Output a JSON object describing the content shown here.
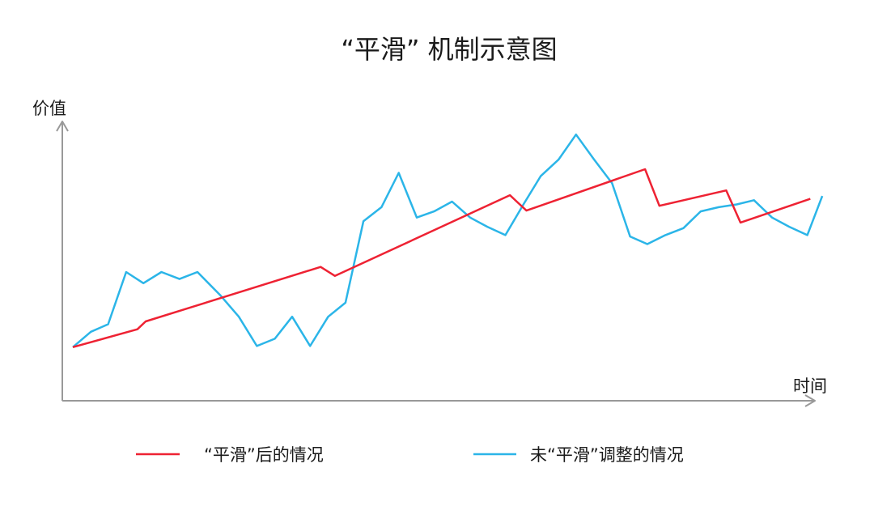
{
  "chart_data": {
    "type": "line",
    "title": "“平滑” 机制示意图",
    "xlabel": "时间",
    "ylabel": "价值",
    "xlim": [
      0,
      100
    ],
    "ylim": [
      0,
      100
    ],
    "grid": false,
    "legend_position": "bottom",
    "series": [
      {
        "name": "“平滑”后的情况",
        "color": "#ee2233",
        "points": [
          [
            1.4,
            19.2
          ],
          [
            10,
            25.6
          ],
          [
            11.1,
            28.4
          ],
          [
            34.4,
            47.9
          ],
          [
            36.3,
            44.7
          ],
          [
            59.6,
            73.6
          ],
          [
            61.8,
            68.1
          ],
          [
            77.6,
            82.9
          ],
          [
            79.5,
            69.8
          ],
          [
            88.4,
            75.3
          ],
          [
            90.3,
            63.8
          ],
          [
            99.6,
            72.3
          ]
        ]
      },
      {
        "name": "未“平滑”调整的情况",
        "color": "#2bb5e8",
        "points": [
          [
            1.4,
            19.2
          ],
          [
            3.8,
            24.7
          ],
          [
            6.1,
            27.4
          ],
          [
            8.5,
            46.1
          ],
          [
            10.8,
            42.1
          ],
          [
            13.2,
            46.1
          ],
          [
            15.6,
            43.6
          ],
          [
            18,
            46.1
          ],
          [
            21.1,
            37.6
          ],
          [
            23.5,
            30.1
          ],
          [
            25.9,
            19.6
          ],
          [
            28.3,
            22.2
          ],
          [
            30.6,
            30.1
          ],
          [
            33,
            19.6
          ],
          [
            35.4,
            30.1
          ],
          [
            37.7,
            35.1
          ],
          [
            40.1,
            64.3
          ],
          [
            42.5,
            69.3
          ],
          [
            44.8,
            81.6
          ],
          [
            47.2,
            65.6
          ],
          [
            49.5,
            67.8
          ],
          [
            51.9,
            71.3
          ],
          [
            54.3,
            65.6
          ],
          [
            56.6,
            62.3
          ],
          [
            59,
            59.3
          ],
          [
            61.4,
            70.3
          ],
          [
            63.7,
            80.4
          ],
          [
            66.1,
            86.4
          ],
          [
            68.4,
            95.3
          ],
          [
            70.8,
            86.4
          ],
          [
            73.2,
            77.9
          ],
          [
            75.6,
            58.8
          ],
          [
            77.9,
            56.1
          ],
          [
            80.3,
            59.3
          ],
          [
            82.7,
            61.8
          ],
          [
            85,
            67.8
          ],
          [
            87.4,
            69.3
          ],
          [
            89.8,
            70.3
          ],
          [
            92.1,
            71.8
          ],
          [
            94.5,
            65.6
          ],
          [
            96.8,
            62.3
          ],
          [
            99.2,
            59.3
          ],
          [
            101.2,
            73.3
          ]
        ]
      }
    ]
  }
}
